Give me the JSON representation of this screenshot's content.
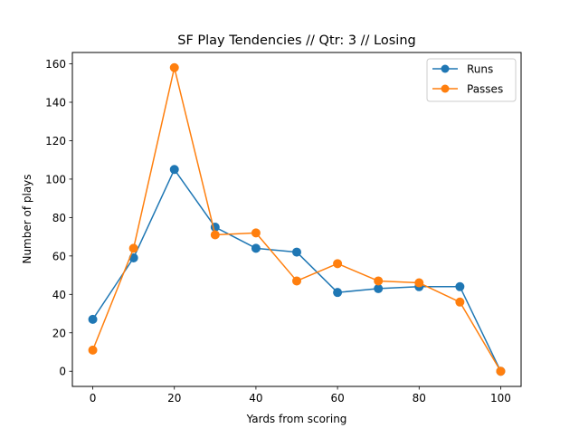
{
  "chart_data": {
    "type": "line",
    "title": "SF Play Tendencies // Qtr: 3 // Losing",
    "xlabel": "Yards from scoring",
    "ylabel": "Number of plays",
    "xlim": [
      -5,
      105
    ],
    "ylim": [
      -7.9,
      165.9
    ],
    "xticks": [
      0,
      20,
      40,
      60,
      80,
      100
    ],
    "yticks": [
      0,
      20,
      40,
      60,
      80,
      100,
      120,
      140,
      160
    ],
    "grid": false,
    "legend_position": "top-right",
    "x": [
      0,
      10,
      20,
      30,
      40,
      50,
      60,
      70,
      80,
      90,
      100
    ],
    "series": [
      {
        "name": "Runs",
        "color": "#1f77b4",
        "marker": "circle",
        "values": [
          27,
          59,
          105,
          75,
          64,
          62,
          41,
          43,
          44,
          44,
          0
        ]
      },
      {
        "name": "Passes",
        "color": "#ff7f0e",
        "marker": "circle",
        "values": [
          11,
          64,
          158,
          71,
          72,
          47,
          56,
          47,
          46,
          36,
          0
        ]
      }
    ]
  }
}
